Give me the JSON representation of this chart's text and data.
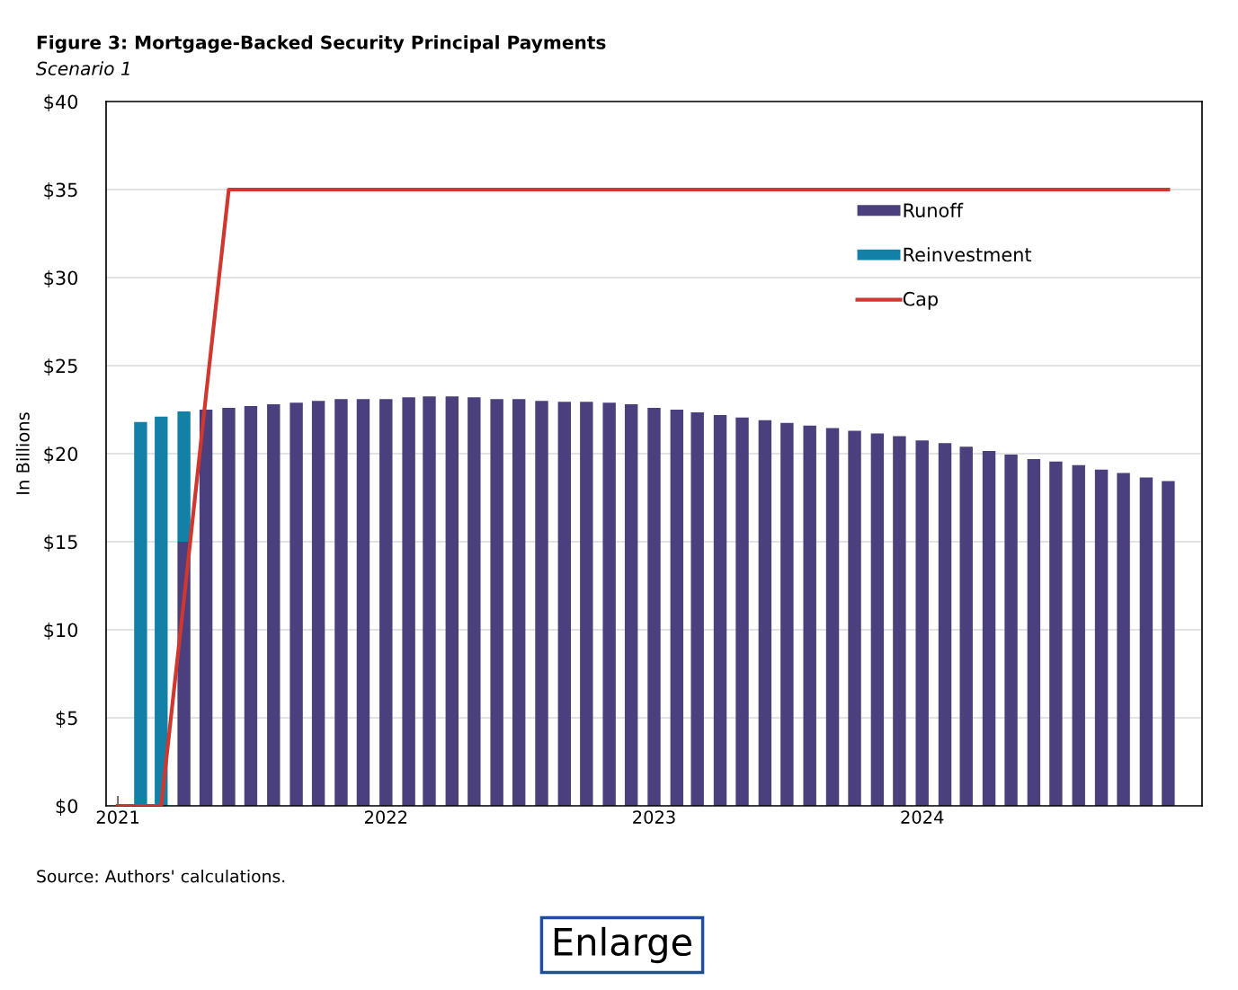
{
  "chart_data": {
    "type": "bar",
    "stacked": true,
    "title": "Figure 3: Mortgage-Backed Security Principal Payments",
    "subtitle": "Scenario 1",
    "ylabel": "In Billions",
    "x": [
      "2021-01",
      "2021-02",
      "2021-03",
      "2021-04",
      "2021-05",
      "2021-06",
      "2021-07",
      "2021-08",
      "2021-09",
      "2021-10",
      "2021-11",
      "2021-12",
      "2022-01",
      "2022-02",
      "2022-03",
      "2022-04",
      "2022-05",
      "2022-06",
      "2022-07",
      "2022-08",
      "2022-09",
      "2022-10",
      "2022-11",
      "2022-12",
      "2023-01",
      "2023-02",
      "2023-03",
      "2023-04",
      "2023-05",
      "2023-06",
      "2023-07",
      "2023-08",
      "2023-09",
      "2023-10",
      "2023-11",
      "2023-12",
      "2024-01",
      "2024-02",
      "2024-03",
      "2024-04",
      "2024-05",
      "2024-06",
      "2024-07",
      "2024-08",
      "2024-09",
      "2024-10",
      "2024-11",
      "2024-12"
    ],
    "series": [
      {
        "name": "Runoff",
        "color": "#4b3f7e",
        "values": [
          null,
          null,
          null,
          15,
          22.5,
          22.6,
          22.7,
          22.8,
          22.9,
          23.0,
          23.1,
          23.1,
          23.1,
          23.2,
          23.25,
          23.25,
          23.2,
          23.1,
          23.1,
          23.0,
          22.95,
          22.95,
          22.9,
          22.8,
          22.6,
          22.5,
          22.35,
          22.2,
          22.05,
          21.9,
          21.75,
          21.6,
          21.45,
          21.3,
          21.15,
          21.0,
          20.75,
          20.6,
          20.4,
          20.15,
          19.95,
          19.7,
          19.55,
          19.35,
          19.1,
          18.9,
          18.65,
          18.45
        ]
      },
      {
        "name": "Reinvestment",
        "color": "#1380a8",
        "values": [
          null,
          21.8,
          22.1,
          7.4,
          null,
          null,
          null,
          null,
          null,
          null,
          null,
          null,
          null,
          null,
          null,
          null,
          null,
          null,
          null,
          null,
          null,
          null,
          null,
          null,
          null,
          null,
          null,
          null,
          null,
          null,
          null,
          null,
          null,
          null,
          null,
          null,
          null,
          null,
          null,
          null,
          null,
          null,
          null,
          null,
          null,
          null,
          null,
          null
        ]
      },
      {
        "name": "Cap",
        "type": "line",
        "color": "#d0372e",
        "values": [
          0,
          0,
          0,
          11.7,
          23.3,
          35,
          35,
          35,
          35,
          35,
          35,
          35,
          35,
          35,
          35,
          35,
          35,
          35,
          35,
          35,
          35,
          35,
          35,
          35,
          35,
          35,
          35,
          35,
          35,
          35,
          35,
          35,
          35,
          35,
          35,
          35,
          35,
          35,
          35,
          35,
          35,
          35,
          35,
          35,
          35,
          35,
          35,
          35
        ]
      }
    ],
    "xlim": [
      "2020-12-16",
      "2025-01-16"
    ],
    "xticks": [
      {
        "value": "2021-01",
        "label": "2021"
      },
      {
        "value": "2022-01",
        "label": "2022"
      },
      {
        "value": "2023-01",
        "label": "2023"
      },
      {
        "value": "2024-01",
        "label": "2024"
      }
    ],
    "ylim": [
      0,
      40
    ],
    "yticks": [
      {
        "value": 0,
        "label": "$0"
      },
      {
        "value": 5,
        "label": "$5"
      },
      {
        "value": 10,
        "label": "$10"
      },
      {
        "value": 15,
        "label": "$15"
      },
      {
        "value": 20,
        "label": "$20"
      },
      {
        "value": 25,
        "label": "$25"
      },
      {
        "value": 30,
        "label": "$30"
      },
      {
        "value": 35,
        "label": "$35"
      },
      {
        "value": 40,
        "label": "$40"
      }
    ],
    "grid": "y",
    "legend": "top right",
    "annotations": [
      "Source: Authors' calculations.",
      "Enlarge"
    ]
  }
}
